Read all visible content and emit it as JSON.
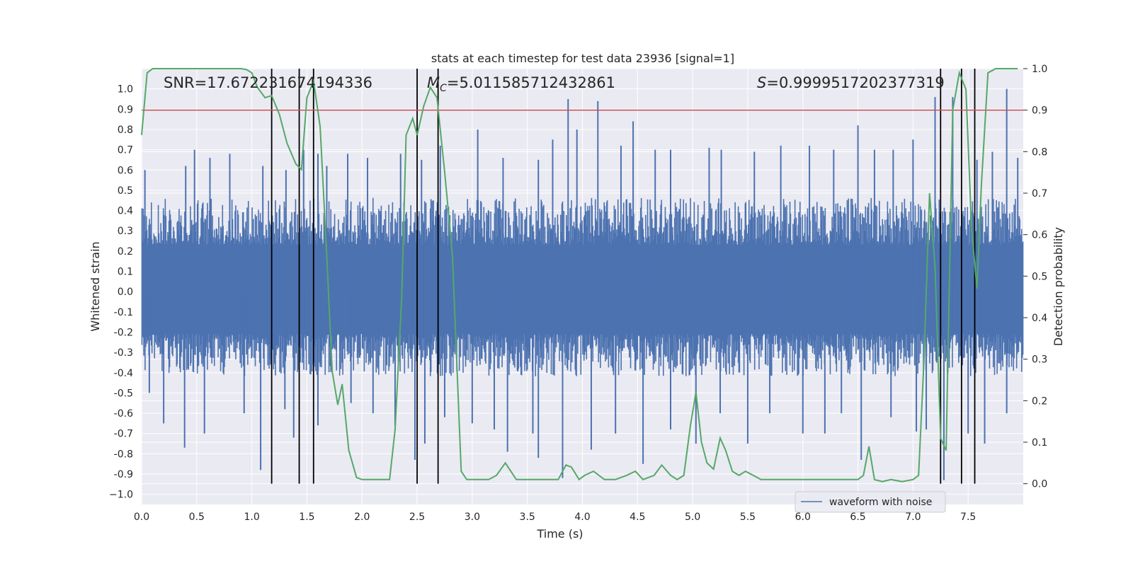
{
  "chart_data": {
    "type": "line",
    "title": "stats at each timestep for test data 23936 [signal=1]",
    "xlabel": "Time (s)",
    "ylabel": "Whitened strain",
    "y2label": "Detection probability",
    "xlim": [
      0,
      8
    ],
    "ylim": [
      -1.05,
      1.1
    ],
    "y2lim": [
      -0.05,
      1.0
    ],
    "xticks": [
      "0.0",
      "0.5",
      "1.0",
      "1.5",
      "2.0",
      "2.5",
      "3.0",
      "3.5",
      "4.0",
      "4.5",
      "5.0",
      "5.5",
      "6.0",
      "6.5",
      "7.0",
      "7.5"
    ],
    "yticks": [
      "1.0",
      "0.9",
      "0.8",
      "0.7",
      "0.6",
      "0.5",
      "0.4",
      "0.3",
      "0.2",
      "0.1",
      "0.0",
      "-0.1",
      "-0.2",
      "-0.3",
      "-0.4",
      "-0.5",
      "-0.6",
      "-0.7",
      "-0.8",
      "-0.9",
      "−1.0"
    ],
    "y2ticks": [
      "1.0",
      "0.9",
      "0.8",
      "0.7",
      "0.6",
      "0.5",
      "0.4",
      "0.3",
      "0.2",
      "0.1",
      "0.0"
    ],
    "grid": true,
    "legend": {
      "placement": "bottom-right",
      "entries": [
        "waveform with noise"
      ]
    },
    "annotations": {
      "snr": "SNR=17.672231674194336",
      "mc_symbol": "M",
      "mc_sub": "C",
      "mc_value": "=5.011585712432861",
      "s_symbol": "S",
      "s_value": "=0.9999517202377319"
    },
    "threshold": {
      "y2": 0.9,
      "color": "#c44e52"
    },
    "event_lines_x": [
      1.18,
      1.43,
      1.56,
      2.5,
      2.69,
      7.25,
      7.44,
      7.56
    ],
    "series": [
      {
        "name": "waveform with noise",
        "color": "#4c72b0",
        "band": {
          "x": [
            0,
            8
          ],
          "typical_upper": 0.42,
          "typical_lower": -0.38
        },
        "spikes_up": [
          [
            0.03,
            0.6
          ],
          [
            0.4,
            0.62
          ],
          [
            0.48,
            0.7
          ],
          [
            0.62,
            0.66
          ],
          [
            0.8,
            0.68
          ],
          [
            1.1,
            0.62
          ],
          [
            1.31,
            0.6
          ],
          [
            1.47,
            0.7
          ],
          [
            1.6,
            0.68
          ],
          [
            1.68,
            0.62
          ],
          [
            1.87,
            0.68
          ],
          [
            2.05,
            0.66
          ],
          [
            2.35,
            0.68
          ],
          [
            2.54,
            0.65
          ],
          [
            2.71,
            0.72
          ],
          [
            3.05,
            0.8
          ],
          [
            3.28,
            0.66
          ],
          [
            3.6,
            0.65
          ],
          [
            3.73,
            0.75
          ],
          [
            3.87,
            0.95
          ],
          [
            3.95,
            0.8
          ],
          [
            4.14,
            0.94
          ],
          [
            4.35,
            0.72
          ],
          [
            4.46,
            0.84
          ],
          [
            4.66,
            0.7
          ],
          [
            4.8,
            0.7
          ],
          [
            5.15,
            0.71
          ],
          [
            5.26,
            0.7
          ],
          [
            5.56,
            0.69
          ],
          [
            5.8,
            0.72
          ],
          [
            6.06,
            0.72
          ],
          [
            6.28,
            0.7
          ],
          [
            6.5,
            0.82
          ],
          [
            6.65,
            0.7
          ],
          [
            6.82,
            0.7
          ],
          [
            7.0,
            0.75
          ],
          [
            7.2,
            0.96
          ],
          [
            7.36,
            0.96
          ],
          [
            7.58,
            0.65
          ],
          [
            7.72,
            0.69
          ],
          [
            7.85,
            1.0
          ],
          [
            7.95,
            0.66
          ]
        ],
        "spikes_down": [
          [
            0.07,
            -0.5
          ],
          [
            0.2,
            -0.65
          ],
          [
            0.39,
            -0.77
          ],
          [
            0.57,
            -0.7
          ],
          [
            0.93,
            -0.6
          ],
          [
            1.08,
            -0.88
          ],
          [
            1.3,
            -0.58
          ],
          [
            1.38,
            -0.72
          ],
          [
            1.6,
            -0.66
          ],
          [
            1.9,
            -0.55
          ],
          [
            2.1,
            -0.6
          ],
          [
            2.3,
            -0.66
          ],
          [
            2.48,
            -0.83
          ],
          [
            2.57,
            -0.75
          ],
          [
            2.75,
            -0.62
          ],
          [
            3.0,
            -0.65
          ],
          [
            3.2,
            -0.68
          ],
          [
            3.32,
            -0.79
          ],
          [
            3.55,
            -0.7
          ],
          [
            3.6,
            -0.82
          ],
          [
            3.82,
            -0.92
          ],
          [
            4.08,
            -0.78
          ],
          [
            4.3,
            -0.7
          ],
          [
            4.55,
            -0.85
          ],
          [
            4.8,
            -0.68
          ],
          [
            5.03,
            -0.75
          ],
          [
            5.25,
            -0.6
          ],
          [
            5.5,
            -0.75
          ],
          [
            5.7,
            -0.6
          ],
          [
            6.0,
            -0.7
          ],
          [
            6.2,
            -0.7
          ],
          [
            6.35,
            -0.6
          ],
          [
            6.53,
            -0.83
          ],
          [
            6.8,
            -0.62
          ],
          [
            7.03,
            -0.69
          ],
          [
            7.12,
            -0.68
          ],
          [
            7.28,
            -0.93
          ],
          [
            7.5,
            -0.7
          ],
          [
            7.65,
            -0.75
          ],
          [
            7.85,
            -0.6
          ]
        ]
      },
      {
        "name": "detection probability",
        "color": "#55a868",
        "axis": "y2",
        "x": [
          0.0,
          0.05,
          0.1,
          0.2,
          0.4,
          0.6,
          0.8,
          0.9,
          0.95,
          1.0,
          1.05,
          1.12,
          1.18,
          1.25,
          1.32,
          1.4,
          1.45,
          1.5,
          1.56,
          1.62,
          1.68,
          1.73,
          1.78,
          1.82,
          1.88,
          1.95,
          2.0,
          2.1,
          2.2,
          2.25,
          2.3,
          2.36,
          2.4,
          2.46,
          2.5,
          2.56,
          2.62,
          2.68,
          2.75,
          2.82,
          2.9,
          2.95,
          3.05,
          3.15,
          3.22,
          3.3,
          3.4,
          3.6,
          3.7,
          3.78,
          3.85,
          3.9,
          3.97,
          4.02,
          4.1,
          4.2,
          4.3,
          4.4,
          4.48,
          4.55,
          4.65,
          4.72,
          4.8,
          4.86,
          4.92,
          4.98,
          5.03,
          5.08,
          5.13,
          5.19,
          5.25,
          5.3,
          5.36,
          5.42,
          5.48,
          5.55,
          5.62,
          5.8,
          5.95,
          6.05,
          6.2,
          6.5,
          6.55,
          6.6,
          6.65,
          6.72,
          6.8,
          6.9,
          7.0,
          7.05,
          7.1,
          7.15,
          7.2,
          7.25,
          7.3,
          7.36,
          7.42,
          7.48,
          7.53,
          7.58,
          7.62,
          7.68,
          7.75,
          7.85,
          7.95
        ],
        "y": [
          0.84,
          0.99,
          1.0,
          1.0,
          1.0,
          1.0,
          1.0,
          1.0,
          0.998,
          0.99,
          0.955,
          0.93,
          0.935,
          0.89,
          0.82,
          0.77,
          0.757,
          0.93,
          0.97,
          0.86,
          0.55,
          0.27,
          0.19,
          0.24,
          0.08,
          0.015,
          0.01,
          0.01,
          0.01,
          0.01,
          0.13,
          0.45,
          0.84,
          0.88,
          0.84,
          0.91,
          0.955,
          0.93,
          0.75,
          0.55,
          0.03,
          0.01,
          0.01,
          0.01,
          0.02,
          0.05,
          0.01,
          0.01,
          0.01,
          0.01,
          0.045,
          0.04,
          0.01,
          0.02,
          0.03,
          0.01,
          0.01,
          0.02,
          0.03,
          0.01,
          0.02,
          0.045,
          0.02,
          0.01,
          0.02,
          0.14,
          0.22,
          0.1,
          0.05,
          0.035,
          0.11,
          0.08,
          0.03,
          0.02,
          0.03,
          0.02,
          0.01,
          0.01,
          0.01,
          0.01,
          0.01,
          0.01,
          0.02,
          0.09,
          0.01,
          0.005,
          0.01,
          0.005,
          0.01,
          0.02,
          0.3,
          0.7,
          0.52,
          0.11,
          0.08,
          0.9,
          0.99,
          0.95,
          0.62,
          0.47,
          0.72,
          0.99,
          1.0,
          1.0,
          1.0
        ]
      }
    ]
  }
}
